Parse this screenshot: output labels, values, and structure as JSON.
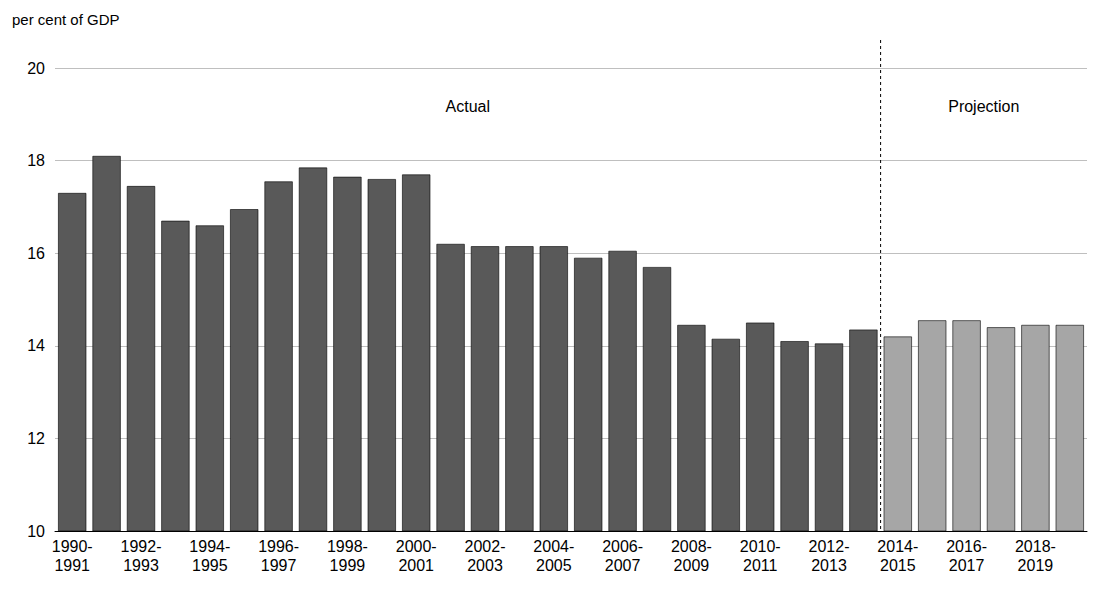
{
  "chart_data": {
    "type": "bar",
    "y_label": "per cent of GDP",
    "categories": [
      "1990-\n1991",
      null,
      "1992-\n1993",
      null,
      "1994-\n1995",
      null,
      "1996-\n1997",
      null,
      "1998-\n1999",
      null,
      "2000-\n2001",
      null,
      "2002-\n2003",
      null,
      "2004-\n2005",
      null,
      "2006-\n2007",
      null,
      "2008-\n2009",
      null,
      "2010-\n2011",
      null,
      "2012-\n2013",
      null,
      "2014-\n2015",
      null,
      "2016-\n2017",
      null,
      "2018-\n2019",
      null
    ],
    "series": [
      {
        "name": "Actual",
        "color": "#595959",
        "values": [
          17.3,
          18.1,
          17.45,
          16.7,
          16.6,
          16.95,
          17.55,
          17.85,
          17.65,
          17.6,
          17.7,
          16.2,
          16.15,
          16.15,
          16.15,
          15.9,
          16.05,
          15.7,
          14.45,
          14.15,
          14.5,
          14.1,
          14.05,
          14.35,
          null,
          null,
          null,
          null,
          null,
          null
        ]
      },
      {
        "name": "Projection",
        "color": "#a6a6a6",
        "values": [
          null,
          null,
          null,
          null,
          null,
          null,
          null,
          null,
          null,
          null,
          null,
          null,
          null,
          null,
          null,
          null,
          null,
          null,
          null,
          null,
          null,
          null,
          null,
          null,
          14.2,
          14.55,
          14.55,
          14.4,
          14.45,
          14.45
        ]
      }
    ],
    "ylim": [
      10,
      20
    ],
    "yticks": [
      10,
      12,
      14,
      16,
      18,
      20
    ],
    "grid": true
  }
}
